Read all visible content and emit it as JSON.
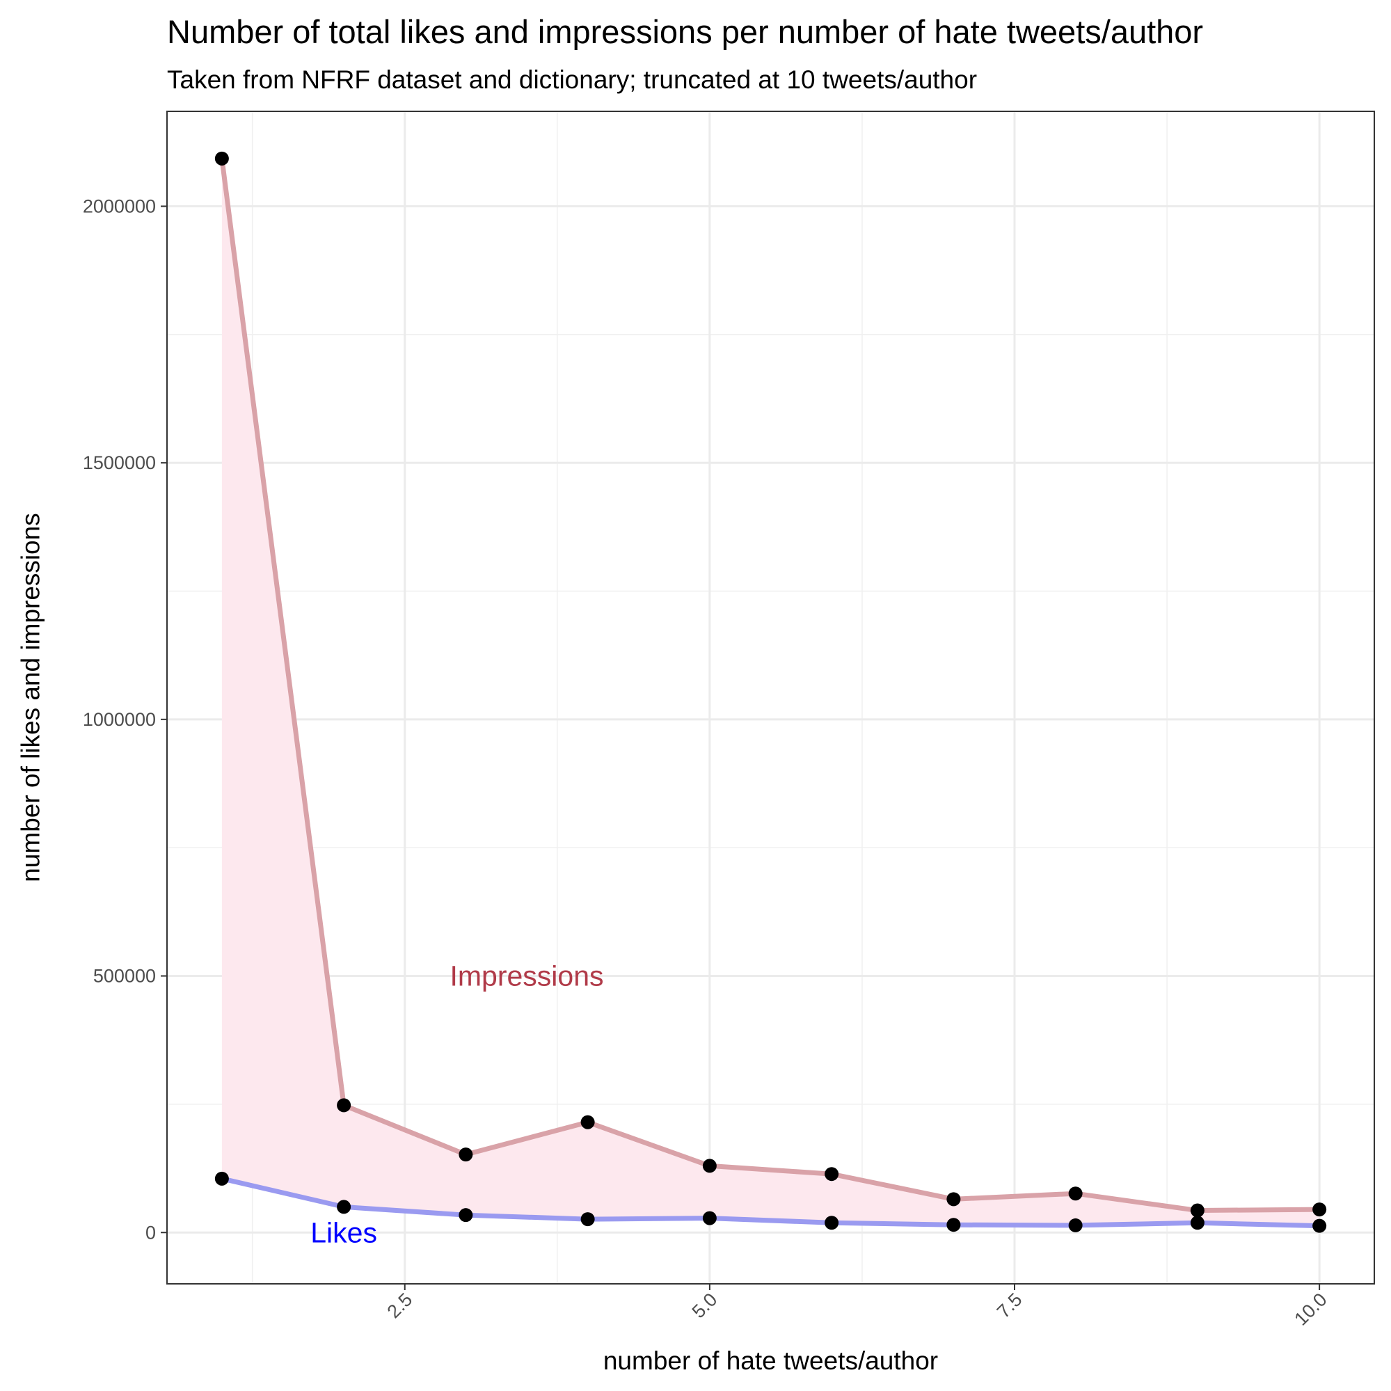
{
  "chart_data": {
    "type": "line",
    "title": "Number of total likes and impressions per number of hate tweets/author",
    "subtitle": "Taken from NFRF dataset and dictionary; truncated at 10 tweets/author",
    "xlabel": "number of hate tweets/author",
    "ylabel": "number of likes and impressions",
    "xlim": [
      0.55,
      10.45
    ],
    "ylim": [
      -100000,
      2185000
    ],
    "x_ticks": [
      2.5,
      5.0,
      7.5,
      10.0
    ],
    "x_tick_labels": [
      "2.5",
      "5.0",
      "7.5",
      "10.0"
    ],
    "y_ticks": [
      0,
      500000,
      1000000,
      1500000,
      2000000
    ],
    "y_tick_labels": [
      "0",
      "500000",
      "1000000",
      "1500000",
      "2000000"
    ],
    "grid": true,
    "x": [
      1,
      2,
      3,
      4,
      5,
      6,
      7,
      8,
      9,
      10
    ],
    "series": [
      {
        "name": "Impressions",
        "values": [
          2093000,
          248000,
          152000,
          215000,
          130000,
          114000,
          65000,
          76000,
          43000,
          45000
        ],
        "color": "#d9a2a8"
      },
      {
        "name": "Likes",
        "values": [
          105000,
          50000,
          34000,
          26000,
          28000,
          19000,
          15000,
          14000,
          19000,
          13000
        ],
        "color": "#9a9af0"
      }
    ],
    "fill_between_color": "#fde8ee",
    "point_color": "#000000",
    "annotations": [
      {
        "text": "Impressions",
        "x": 3.5,
        "y": 500000,
        "color": "#b03a48"
      },
      {
        "text": "Likes",
        "x": 2.0,
        "y": 0,
        "color": "#0000ff"
      }
    ]
  }
}
